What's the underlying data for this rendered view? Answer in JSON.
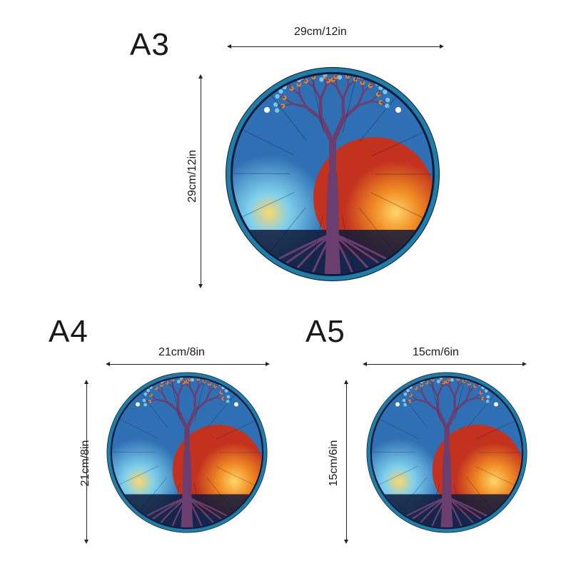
{
  "sizes": [
    {
      "label": "A3",
      "width_text": "29cm/12in",
      "height_text": "29cm/12in"
    },
    {
      "label": "A4",
      "width_text": "21cm/8in",
      "height_text": "21cm/8in"
    },
    {
      "label": "A5",
      "width_text": "15cm/6in",
      "height_text": "15cm/6in"
    }
  ],
  "colors": {
    "rim_dark": "#0f1a3a",
    "rim_teal": "#1e7ea8",
    "glass_blue": "#2f6fb3",
    "glass_cyan": "#7fd0ee",
    "glass_orange": "#f08a24",
    "glass_red": "#c2321e",
    "glass_yellow": "#ffd76a",
    "trunk": "#6a3f70"
  }
}
